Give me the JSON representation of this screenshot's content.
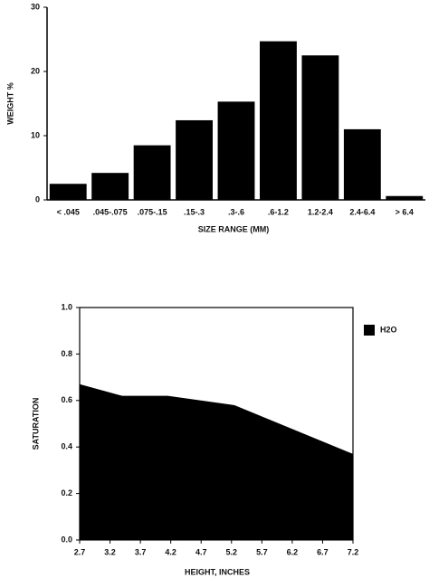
{
  "chart_data": [
    {
      "type": "bar",
      "y_label": "WEIGHT %",
      "x_label": "SIZE RANGE (MM)",
      "categories": [
        "< .045",
        ".045-.075",
        ".075-.15",
        ".15-.3",
        ".3-.6",
        ".6-1.2",
        "1.2-2.4",
        "2.4-6.4",
        "> 6.4"
      ],
      "values": [
        2.5,
        4.2,
        8.5,
        12.4,
        15.3,
        24.7,
        22.5,
        11.0,
        0.6
      ],
      "color": "#000000",
      "ylim": [
        0,
        30
      ],
      "yticks": [
        0,
        10,
        20,
        30
      ]
    },
    {
      "type": "area",
      "y_label": "SATURATION",
      "x_label": "HEIGHT,  INCHES",
      "x": [
        2.7,
        3.4,
        4.15,
        5.25,
        7.2
      ],
      "series": [
        {
          "name": "H2O",
          "color": "#000000",
          "values": [
            0.67,
            0.62,
            0.62,
            0.58,
            0.37
          ]
        }
      ],
      "xlim": [
        2.7,
        7.2
      ],
      "xticks": [
        2.7,
        3.2,
        3.7,
        4.2,
        4.7,
        5.2,
        5.7,
        6.2,
        6.7,
        7.2
      ],
      "ylim": [
        0,
        1
      ],
      "yticks": [
        {
          "value": 0,
          "label": "0.0"
        },
        0.2,
        0.4,
        0.6,
        0.8,
        {
          "value": 1,
          "label": "1.0"
        }
      ],
      "legend": "right"
    }
  ]
}
